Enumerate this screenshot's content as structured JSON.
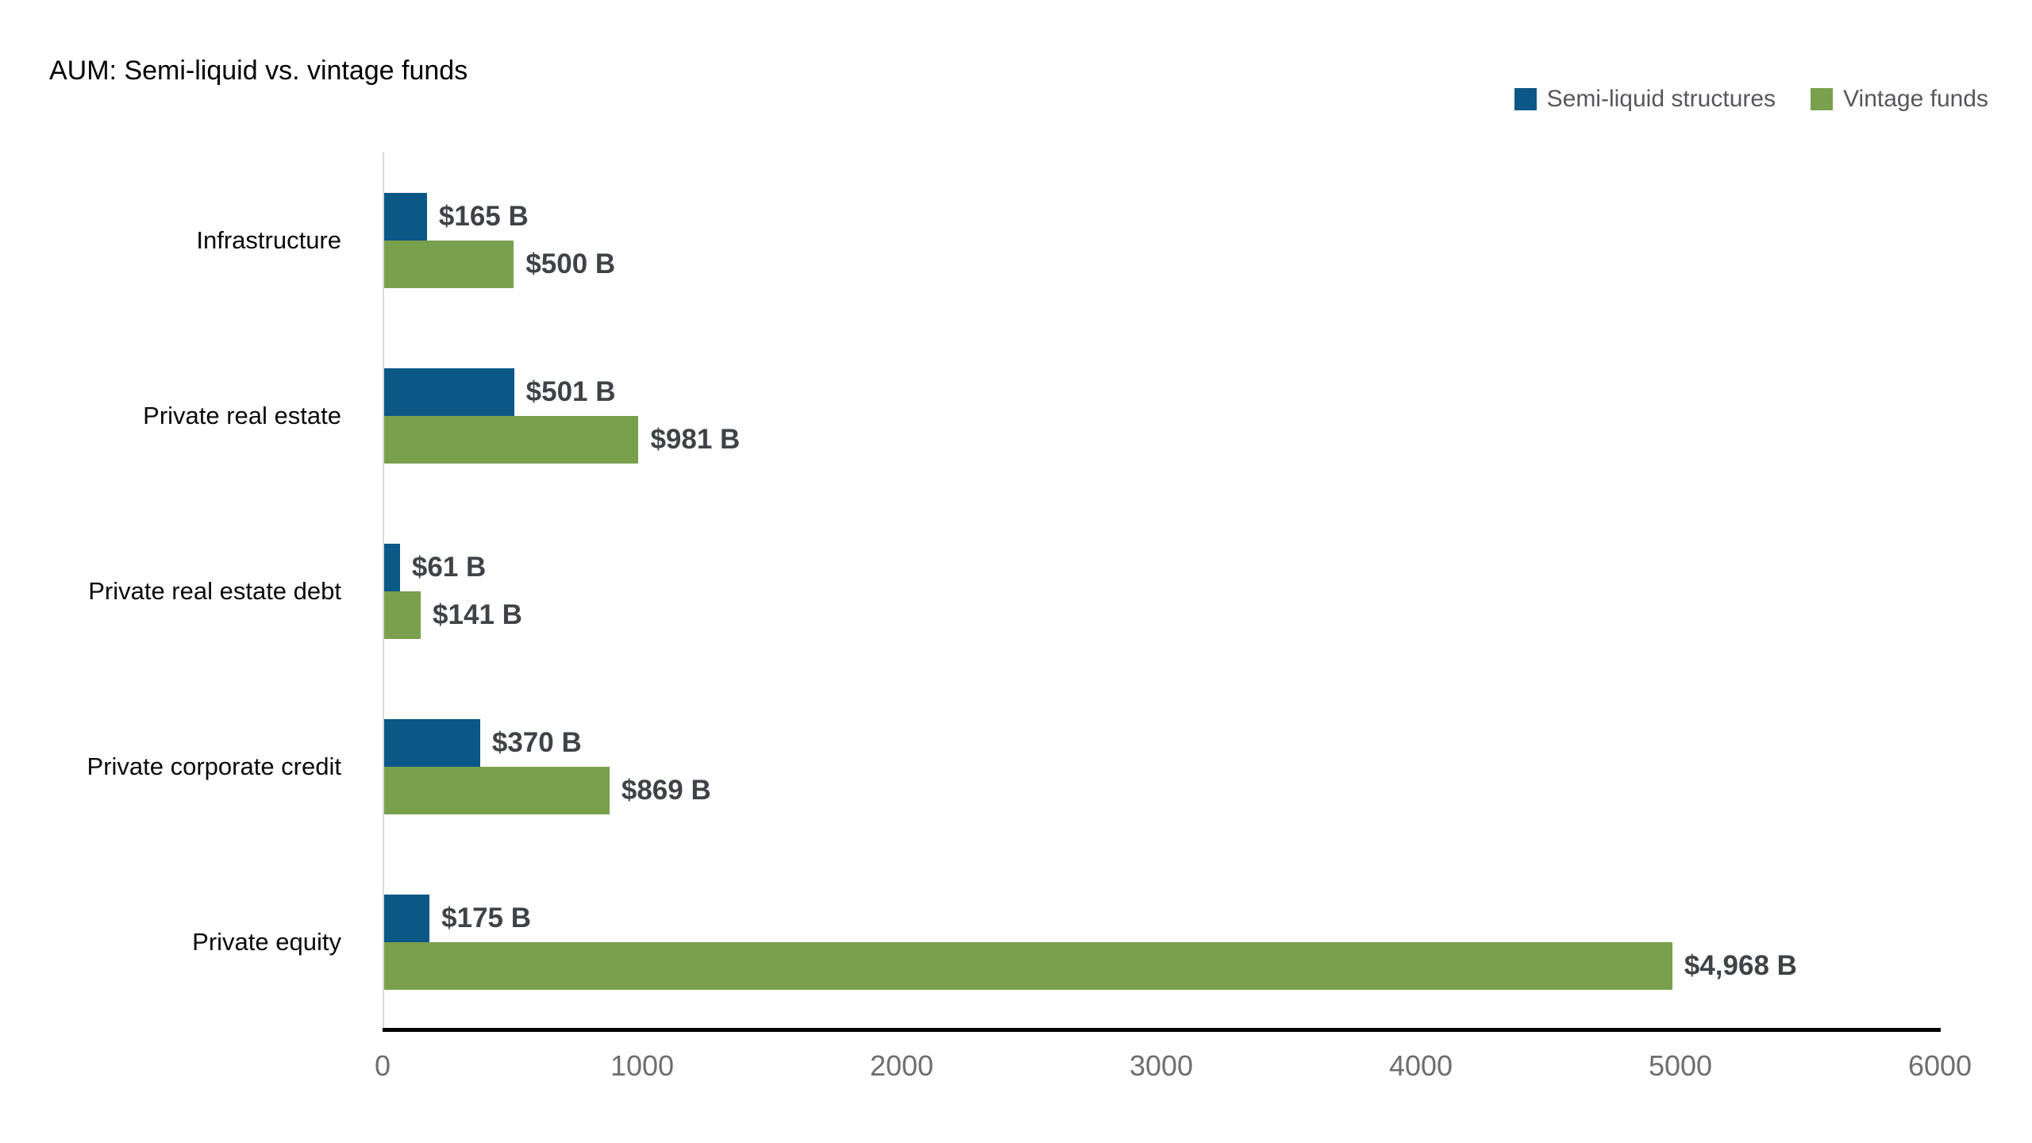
{
  "title": "AUM: Semi-liquid vs. vintage funds",
  "colors": {
    "semi_liquid_blue": "#0B5786",
    "vintage_green": "#7AA04D",
    "value_label_gray": "#3F4347",
    "legend_text_gray": "#55575C",
    "tick_text_gray": "#6C6E70",
    "baseline_black": "#000000",
    "origin_line_gray": "#D9D9D9",
    "background": "#FFFFFF"
  },
  "chart_data": {
    "type": "bar",
    "orientation": "horizontal",
    "title": "AUM: Semi-liquid vs. vintage funds",
    "categories": [
      "Infrastructure",
      "Private real estate",
      "Private real estate debt",
      "Private corporate credit",
      "Private equity"
    ],
    "series": [
      {
        "name": "Semi-liquid structures",
        "color": "#0B5786",
        "values": [
          165,
          501,
          61,
          370,
          175
        ],
        "value_labels": [
          "$165 B",
          "$501 B",
          "$61 B",
          "$370 B",
          "$175 B"
        ]
      },
      {
        "name": "Vintage funds",
        "color": "#7AA04D",
        "values": [
          500,
          981,
          141,
          869,
          4968
        ],
        "value_labels": [
          "$500 B",
          "$981 B",
          "$141 B",
          "$869 B",
          "$4,968 B"
        ]
      }
    ],
    "xlabel": "",
    "ylabel": "",
    "xlim": [
      0,
      6000
    ],
    "x_ticks": [
      "0",
      "1000",
      "2000",
      "3000",
      "4000",
      "5000",
      "6000"
    ],
    "grid": "none",
    "legend_position": "top-right",
    "value_unit": "USD billions"
  }
}
